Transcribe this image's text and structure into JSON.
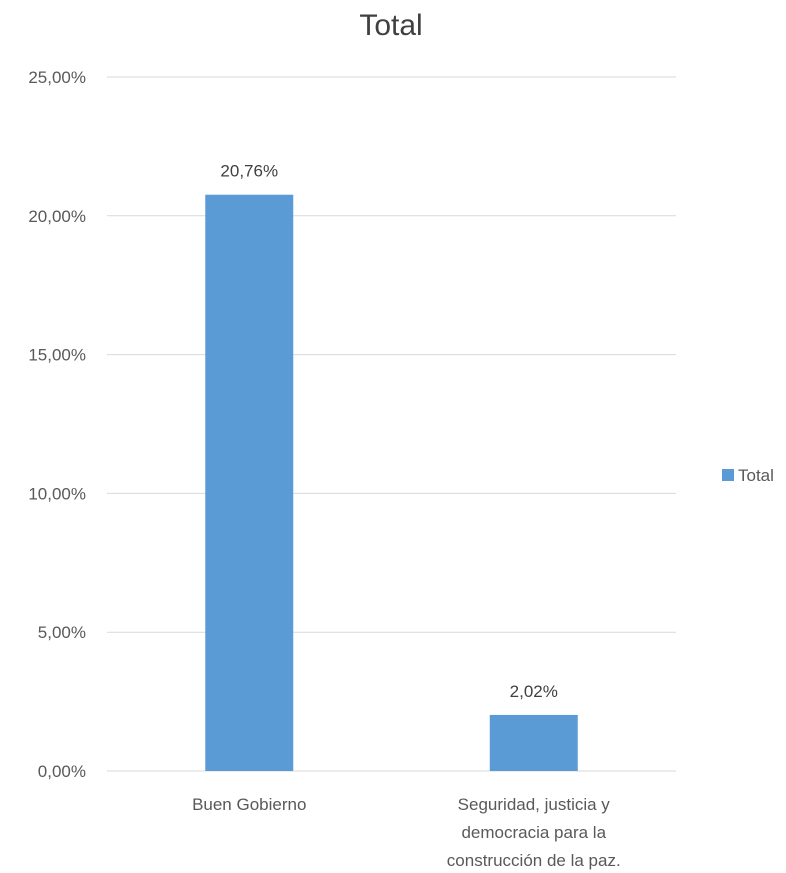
{
  "chart_data": {
    "type": "bar",
    "title": "Total",
    "xlabel": "",
    "ylabel": "",
    "categories": [
      [
        "Buen Gobierno"
      ],
      [
        "Seguridad, justicia y",
        "democracia para la",
        "construcción de la paz."
      ]
    ],
    "series": [
      {
        "name": "Total",
        "values": [
          20.76,
          2.02
        ],
        "labels": [
          "20,76%",
          "2,02%"
        ]
      }
    ],
    "ylim": [
      0,
      25
    ],
    "yticks": [
      0,
      5,
      10,
      15,
      20,
      25
    ],
    "ytick_labels": [
      "0,00%",
      "5,00%",
      "10,00%",
      "15,00%",
      "20,00%",
      "25,00%"
    ],
    "grid": true,
    "legend_position": "right",
    "bar_color": "#5B9BD5",
    "grid_color": "#D9D9D9"
  }
}
